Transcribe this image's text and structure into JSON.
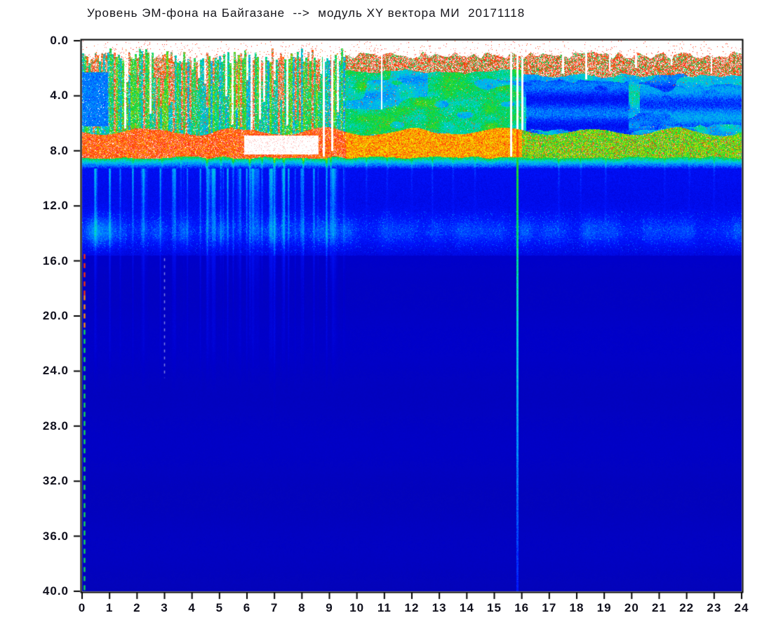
{
  "figure": {
    "title": "Уровень ЭМ-фона на Байгазане  -->  модуль XY вектора МИ  20171118"
  },
  "chart_data": {
    "type": "heatmap",
    "subtype": "spectrogram",
    "title": "Уровень ЭМ-фона на Байгазане --> модуль XY вектора МИ 20171118",
    "title_parts": {
      "quantity": "Уровень ЭМ-фона",
      "station": "на Байгазане",
      "arrow": "-->",
      "channel": "модуль XY вектора МИ",
      "date": "20171118"
    },
    "x_axis": {
      "label": "",
      "min": 0,
      "max": 24,
      "tick_step": 1,
      "tick_labels": [
        "0",
        "1",
        "2",
        "3",
        "4",
        "5",
        "6",
        "7",
        "8",
        "9",
        "10",
        "11",
        "12",
        "13",
        "14",
        "15",
        "16",
        "17",
        "18",
        "19",
        "20",
        "21",
        "22",
        "23",
        "24"
      ]
    },
    "y_axis": {
      "label": "",
      "min": 0,
      "max": 40,
      "tick_step": 4,
      "inverted": true,
      "tick_labels": [
        "0.0",
        "4.0",
        "8.0",
        "12.0",
        "16.0",
        "20.0",
        "24.0",
        "28.0",
        "32.0",
        "36.0",
        "40.0"
      ]
    },
    "grid": false,
    "legend": false,
    "colormap": {
      "name": "jet-with-white-floor-and-white-saturation",
      "low_cutoff_white": true,
      "stops": [
        [
          0.02,
          "#0a0a96"
        ],
        [
          0.18,
          "#0000cd"
        ],
        [
          0.28,
          "#0014ff"
        ],
        [
          0.38,
          "#0096ff"
        ],
        [
          0.46,
          "#00d7d7"
        ],
        [
          0.54,
          "#00d23c"
        ],
        [
          0.64,
          "#a0e100"
        ],
        [
          0.72,
          "#ffe600"
        ],
        [
          0.8,
          "#ff7800"
        ],
        [
          0.88,
          "#ff1e14"
        ],
        [
          0.95,
          "#ffffff"
        ]
      ]
    },
    "intensity_bands": [
      {
        "depth": [
          0.0,
          0.9
        ],
        "value": 0.0,
        "desc": "white no-signal strip with sparse red speckles"
      },
      {
        "depth": [
          0.9,
          2.2
        ],
        "value": 0.78,
        "desc": "red speckle noise cap across all hours"
      },
      {
        "depth": [
          2.2,
          6.5
        ],
        "value": 0.5,
        "desc": "green/cyan activity: ragged red+white vertical columns hours 0-9.6, solid green hours 9.6-16, cyan with dark-blue patches hours 16-24"
      },
      {
        "depth": [
          6.5,
          8.4
        ],
        "value": 0.84,
        "desc": "intense red band, white-saturated around hours 6-8.5, weakening to yellow-green after hour 16"
      },
      {
        "depth": [
          8.4,
          9.3
        ],
        "value": 0.42,
        "desc": "green to cyan transition under the red band"
      },
      {
        "depth": [
          9.3,
          15.6
        ],
        "value": 0.24,
        "desc": "blue zone with cyan vertical streaks (hours 0-9.6) and a diffuse lighter layer near depth 13-14.5"
      },
      {
        "depth": [
          15.6,
          40
        ],
        "value": 0.16,
        "desc": "deep blue, slowly darkening toward the bottom"
      }
    ],
    "zone_values": {
      "red_cap": 0.76,
      "upper_h0_9": 0.42,
      "upper_h9_16": 0.52,
      "upper_h16_24": 0.44,
      "band_h0_10": 0.84,
      "band_h10_16": 0.77,
      "band_h16_24": 0.6,
      "blue_zone": 0.255,
      "cyan_layer_depth": 13.9,
      "deep_blue_top": 0.165,
      "deep_blue_fall": 0.03
    },
    "texture_segments_hours": [
      9.6,
      16.0
    ],
    "features": {
      "bright_line": {
        "hour": 15.85,
        "depth": [
          0.9,
          40
        ],
        "desc": "narrow bright column: white gap above band, red through band, green fading to cyan/light-blue down to 40"
      },
      "companion_white_gaps": [
        {
          "hour": 15.62,
          "depth_to": 8.4
        },
        {
          "hour": 16.02,
          "depth_to": 6.5
        }
      ],
      "white_gap_columns": [
        {
          "hour": 8.8,
          "depth_to": 8.4
        },
        {
          "hour": 9.1,
          "depth_to": 8.0
        },
        {
          "hour": 10.9,
          "depth_to": 5.0
        },
        {
          "hour": 17.5,
          "depth_to": 2.4
        },
        {
          "hour": 18.35,
          "depth_to": 2.8
        },
        {
          "hour": 19.2,
          "depth_to": 2.2
        },
        {
          "hour": 20.15,
          "depth_to": 2.0
        },
        {
          "hour": 21.45,
          "depth_to": 1.8
        },
        {
          "hour": 22.9,
          "depth_to": 2.4
        }
      ],
      "cyan_streaks_format": "[hour, amplitude, fade_out_depth]",
      "cyan_streaks": [
        [
          4.55,
          0.16,
          26
        ],
        [
          5.05,
          0.1,
          20
        ],
        [
          5.5,
          0.12,
          22
        ],
        [
          6.1,
          0.14,
          24
        ],
        [
          6.55,
          0.1,
          20
        ],
        [
          7.0,
          0.16,
          28
        ],
        [
          7.35,
          0.12,
          22
        ],
        [
          8.05,
          0.13,
          24
        ],
        [
          8.9,
          0.17,
          26
        ],
        [
          9.05,
          0.12,
          20
        ],
        [
          1.85,
          0.07,
          14
        ],
        [
          2.9,
          0.06,
          13
        ],
        [
          3.6,
          0.07,
          16
        ],
        [
          10.35,
          0.07,
          15
        ],
        [
          11.1,
          0.06,
          14
        ],
        [
          12.0,
          0.06,
          14
        ],
        [
          12.75,
          0.07,
          15
        ],
        [
          13.5,
          0.06,
          14
        ],
        [
          14.3,
          0.06,
          14
        ],
        [
          17.35,
          0.07,
          15
        ],
        [
          18.15,
          0.06,
          14
        ],
        [
          19.05,
          0.07,
          15
        ],
        [
          21.2,
          0.05,
          13
        ],
        [
          22.1,
          0.05,
          13
        ],
        [
          23.0,
          0.06,
          14
        ]
      ],
      "dark_patches": [
        {
          "hours": [
            16.15,
            19.9
          ],
          "depth": [
            2.8,
            6.4
          ],
          "value": 0.26
        },
        {
          "hours": [
            20.3,
            24.0
          ],
          "depth": [
            3.1,
            6.0
          ],
          "value": 0.3
        }
      ],
      "hot_patch": {
        "hours": [
          5.9,
          8.6
        ],
        "depth": [
          6.9,
          8.25
        ],
        "desc": "white-saturated core of the red band"
      },
      "blue_patch_start": {
        "hours": [
          0.0,
          0.95
        ],
        "depth": [
          2.3,
          6.2
        ],
        "value": 0.31
      },
      "left_edge_dashes": {
        "hour": 0.05,
        "segments": [
          {
            "depth": [
              15.5,
              18.5
            ],
            "color": "#e83214"
          },
          {
            "depth": [
              18.5,
              21.0
            ],
            "color": "#f08c14"
          },
          {
            "depth": [
              21.0,
              40.0
            ],
            "color": "#14d25a"
          }
        ]
      },
      "white_dashed_line": {
        "hour": 3.0,
        "depth": [
          15.8,
          24.5
        ],
        "color": "rgba(255,255,255,0.5)"
      }
    }
  }
}
